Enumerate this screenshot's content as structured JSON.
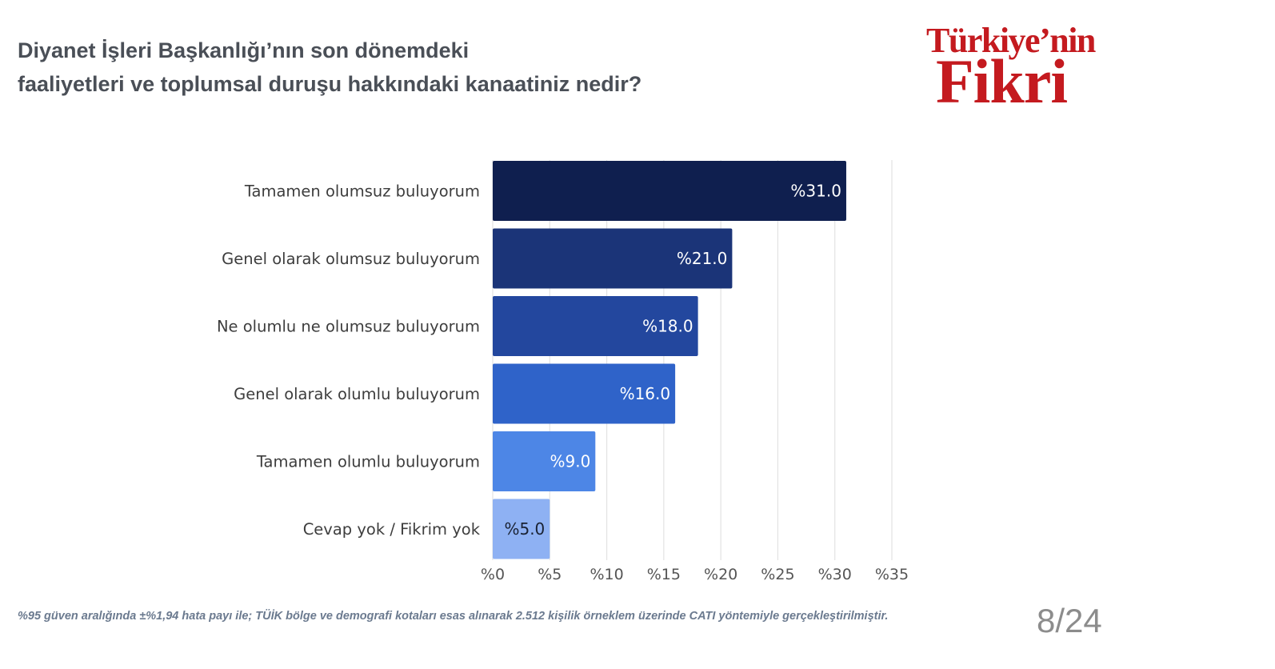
{
  "title": {
    "line1": "Diyanet İşleri Başkanlığı’nın son dönemdeki",
    "line2": "faaliyetleri ve toplumsal duruşu hakkındaki kanaatiniz nedir?"
  },
  "logo": {
    "line1": "Türkiye’nin",
    "line2": "Fikri"
  },
  "chart_data": {
    "type": "bar",
    "orientation": "horizontal",
    "categories": [
      "Tamamen olumsuz buluyorum",
      "Genel olarak olumsuz buluyorum",
      "Ne olumlu ne olumsuz buluyorum",
      "Genel olarak olumlu buluyorum",
      "Tamamen olumlu buluyorum",
      "Cevap yok / Fikrim yok"
    ],
    "values": [
      31.0,
      21.0,
      18.0,
      16.0,
      9.0,
      5.0
    ],
    "value_labels": [
      "%31.0",
      "%21.0",
      "%18.0",
      "%16.0",
      "%9.0",
      "%5.0"
    ],
    "bar_colors": [
      "#0f1f4f",
      "#1b3478",
      "#23479e",
      "#2f63c9",
      "#4d86e6",
      "#8eb1f3"
    ],
    "value_label_colors": [
      "#ffffff",
      "#ffffff",
      "#ffffff",
      "#ffffff",
      "#ffffff",
      "#1a2233"
    ],
    "xlim": [
      0,
      35
    ],
    "x_ticks": [
      0,
      5,
      10,
      15,
      20,
      25,
      30,
      35
    ],
    "x_tick_labels": [
      "%0",
      "%5",
      "%10",
      "%15",
      "%20",
      "%25",
      "%30",
      "%35"
    ],
    "grid": true,
    "title": "",
    "xlabel": "",
    "ylabel": ""
  },
  "footnote": "%95 güven aralığında ±%1,94 hata payı ile; TÜİK bölge ve demografi kotaları esas alınarak 2.512 kişilik örneklem üzerinde CATI yöntemiyle gerçekleştirilmiştir.",
  "page_number": "8/24",
  "colors": {
    "title": "#4a4f57",
    "logo": "#c41a1f",
    "grid": "#e3e3e3",
    "category_label": "#3d3d3d",
    "tick_label": "#555555",
    "footnote": "#6b7a8f",
    "page_number": "#8c8c8c"
  }
}
